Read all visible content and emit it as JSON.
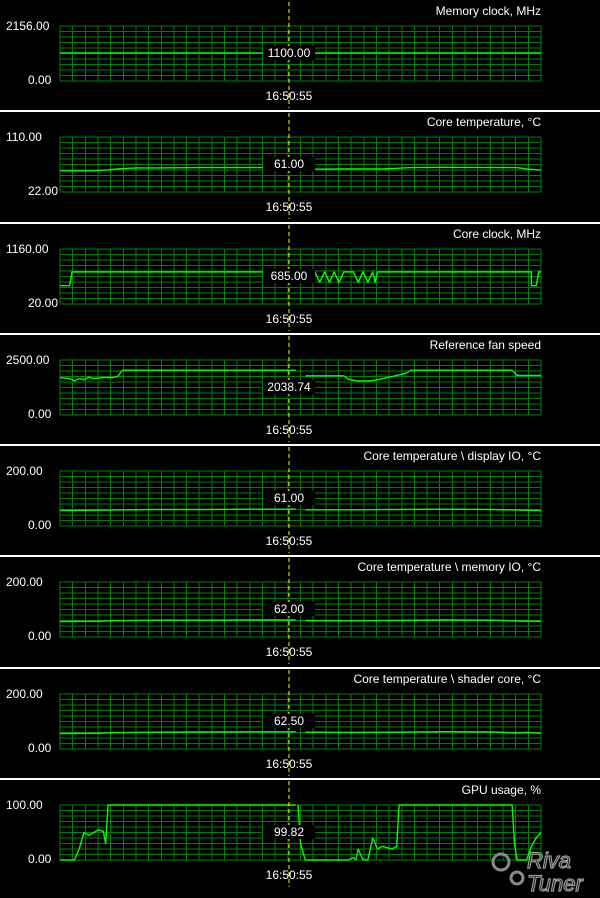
{
  "app": {
    "logo_text": "RivaTuner",
    "colors": {
      "background": "#000000",
      "separator": "#ffffff",
      "grid": "#008000",
      "trace": "#00ff00",
      "text": "#ffffff",
      "cursor": "#ffff00"
    }
  },
  "cursor": {
    "timestamp": "16:50:55"
  },
  "panels": [
    {
      "title": "Memory clock, MHz",
      "y_max_label": "2156.00",
      "y_min_label": "0.00",
      "cursor_value": "1100.00",
      "chart_data": {
        "type": "line",
        "ylim": [
          0,
          2156
        ],
        "series": [
          {
            "values": [
              [
                0,
                1100
              ],
              [
                100,
                1100
              ]
            ]
          }
        ]
      }
    },
    {
      "title": "Core temperature, °C",
      "y_max_label": "110.00",
      "y_min_label": "22.00",
      "cursor_value": "61.00",
      "chart_data": {
        "type": "line",
        "ylim": [
          22,
          110
        ],
        "series": [
          {
            "values": [
              [
                0,
                56
              ],
              [
                7,
                56
              ],
              [
                10,
                57.5
              ],
              [
                12,
                59
              ],
              [
                14,
                60
              ],
              [
                16,
                60.5
              ],
              [
                20,
                60.5
              ],
              [
                30,
                61
              ],
              [
                40,
                61
              ],
              [
                47,
                61
              ],
              [
                49,
                61
              ],
              [
                49.5,
                null
              ],
              [
                51,
                null
              ],
              [
                51,
                59
              ],
              [
                53,
                58.5
              ],
              [
                58,
                59
              ],
              [
                63,
                59
              ],
              [
                67,
                59
              ],
              [
                70,
                60
              ],
              [
                73,
                61
              ],
              [
                80,
                61.5
              ],
              [
                90,
                61
              ],
              [
                95,
                61
              ],
              [
                97,
                59
              ],
              [
                100,
                57
              ]
            ]
          }
        ]
      }
    },
    {
      "title": "Core clock, MHz",
      "y_max_label": "1160.00",
      "y_min_label": "20.00",
      "cursor_value": "685.00",
      "chart_data": {
        "type": "line",
        "ylim": [
          20,
          1160
        ],
        "series": [
          {
            "values": [
              [
                0,
                400
              ],
              [
                2,
                400
              ],
              [
                2.5,
                685
              ],
              [
                49,
                685
              ],
              [
                49.5,
                null
              ],
              [
                51,
                null
              ],
              [
                51,
                685
              ],
              [
                52,
                685
              ],
              [
                52.5,
                470
              ],
              [
                53,
                685
              ],
              [
                54,
                470
              ],
              [
                55,
                685
              ],
              [
                56,
                470
              ],
              [
                57,
                685
              ],
              [
                58,
                470
              ],
              [
                59,
                685
              ],
              [
                61,
                685
              ],
              [
                62,
                470
              ],
              [
                63,
                685
              ],
              [
                64,
                470
              ],
              [
                65,
                685
              ],
              [
                65.5,
                470
              ],
              [
                66,
                685
              ],
              [
                98,
                685
              ],
              [
                98,
                400
              ],
              [
                99,
                400
              ],
              [
                99.5,
                685
              ],
              [
                100,
                685
              ]
            ]
          }
        ]
      }
    },
    {
      "title": "Reference fan speed",
      "y_max_label": "2500.00",
      "y_min_label": "0.00",
      "cursor_value": "2038.74",
      "chart_data": {
        "type": "line",
        "ylim": [
          0,
          2500
        ],
        "series": [
          {
            "values": [
              [
                0,
                1700
              ],
              [
                2,
                1650
              ],
              [
                3,
                1550
              ],
              [
                4,
                1650
              ],
              [
                5,
                1600
              ],
              [
                6,
                1720
              ],
              [
                7,
                1650
              ],
              [
                9,
                1700
              ],
              [
                11,
                1700
              ],
              [
                12,
                1750
              ],
              [
                13,
                2038
              ],
              [
                49,
                2038
              ],
              [
                49.5,
                null
              ],
              [
                51,
                null
              ],
              [
                51,
                1780
              ],
              [
                59,
                1780
              ],
              [
                60,
                1620
              ],
              [
                62,
                1550
              ],
              [
                64,
                1550
              ],
              [
                66,
                1600
              ],
              [
                68,
                1700
              ],
              [
                70,
                1800
              ],
              [
                72,
                1900
              ],
              [
                73,
                2038
              ],
              [
                94,
                2038
              ],
              [
                95,
                1800
              ],
              [
                100,
                1800
              ]
            ]
          }
        ]
      }
    },
    {
      "title": "Core temperature \\ display IO, °C",
      "y_max_label": "200.00",
      "y_min_label": "0.00",
      "cursor_value": "61.00",
      "chart_data": {
        "type": "line",
        "ylim": [
          0,
          200
        ],
        "series": [
          {
            "values": [
              [
                0,
                56
              ],
              [
                10,
                58
              ],
              [
                20,
                60
              ],
              [
                30,
                60
              ],
              [
                40,
                61
              ],
              [
                47,
                61
              ],
              [
                49,
                61
              ],
              [
                49.5,
                null
              ],
              [
                51,
                null
              ],
              [
                51,
                59
              ],
              [
                60,
                59
              ],
              [
                70,
                60
              ],
              [
                80,
                61
              ],
              [
                90,
                60
              ],
              [
                100,
                56
              ]
            ]
          }
        ]
      }
    },
    {
      "title": "Core temperature \\ memory IO, °C",
      "y_max_label": "200.00",
      "y_min_label": "0.00",
      "cursor_value": "62.00",
      "chart_data": {
        "type": "line",
        "ylim": [
          0,
          200
        ],
        "series": [
          {
            "values": [
              [
                0,
                56
              ],
              [
                8,
                57
              ],
              [
                10,
                59
              ],
              [
                20,
                61
              ],
              [
                30,
                61
              ],
              [
                40,
                62
              ],
              [
                47,
                62
              ],
              [
                49,
                62
              ],
              [
                49.5,
                null
              ],
              [
                51,
                null
              ],
              [
                51,
                60
              ],
              [
                60,
                59
              ],
              [
                70,
                60
              ],
              [
                80,
                62
              ],
              [
                90,
                61
              ],
              [
                95,
                58
              ],
              [
                100,
                57
              ]
            ]
          }
        ]
      }
    },
    {
      "title": "Core temperature \\ shader core, °C",
      "y_max_label": "200.00",
      "y_min_label": "0.00",
      "cursor_value": "62.50",
      "chart_data": {
        "type": "line",
        "ylim": [
          0,
          200
        ],
        "series": [
          {
            "values": [
              [
                0,
                56
              ],
              [
                8,
                57
              ],
              [
                10,
                59
              ],
              [
                20,
                61
              ],
              [
                30,
                62
              ],
              [
                40,
                62.5
              ],
              [
                47,
                62.5
              ],
              [
                49,
                62.5
              ],
              [
                49.5,
                null
              ],
              [
                51,
                null
              ],
              [
                51,
                61
              ],
              [
                60,
                60
              ],
              [
                70,
                61
              ],
              [
                80,
                63
              ],
              [
                90,
                62
              ],
              [
                95,
                58
              ],
              [
                97,
                60
              ],
              [
                100,
                57
              ]
            ]
          }
        ]
      }
    },
    {
      "title": "GPU usage, %",
      "y_max_label": "100.00",
      "y_min_label": "0.00",
      "cursor_value": "99.82",
      "chart_data": {
        "type": "line",
        "ylim": [
          0,
          100
        ],
        "series": [
          {
            "values": [
              [
                0,
                0
              ],
              [
                3,
                0
              ],
              [
                4,
                20
              ],
              [
                5,
                50
              ],
              [
                6,
                45
              ],
              [
                7,
                50
              ],
              [
                8,
                55
              ],
              [
                9,
                52
              ],
              [
                9.5,
                30
              ],
              [
                10,
                100
              ],
              [
                49,
                100
              ],
              [
                49.5,
                null
              ],
              [
                49.5,
                100
              ],
              [
                50,
                30
              ],
              [
                51,
                0
              ],
              [
                60,
                0
              ],
              [
                61,
                5
              ],
              [
                61.5,
                0
              ],
              [
                62,
                20
              ],
              [
                63,
                0
              ],
              [
                64,
                0
              ],
              [
                65,
                40
              ],
              [
                66,
                20
              ],
              [
                67,
                25
              ],
              [
                69,
                20
              ],
              [
                70,
                25
              ],
              [
                70.5,
                100
              ],
              [
                94,
                100
              ],
              [
                94.5,
                30
              ],
              [
                95,
                0
              ],
              [
                97,
                0
              ],
              [
                98,
                25
              ],
              [
                99,
                40
              ],
              [
                100,
                50
              ]
            ]
          }
        ]
      }
    }
  ]
}
